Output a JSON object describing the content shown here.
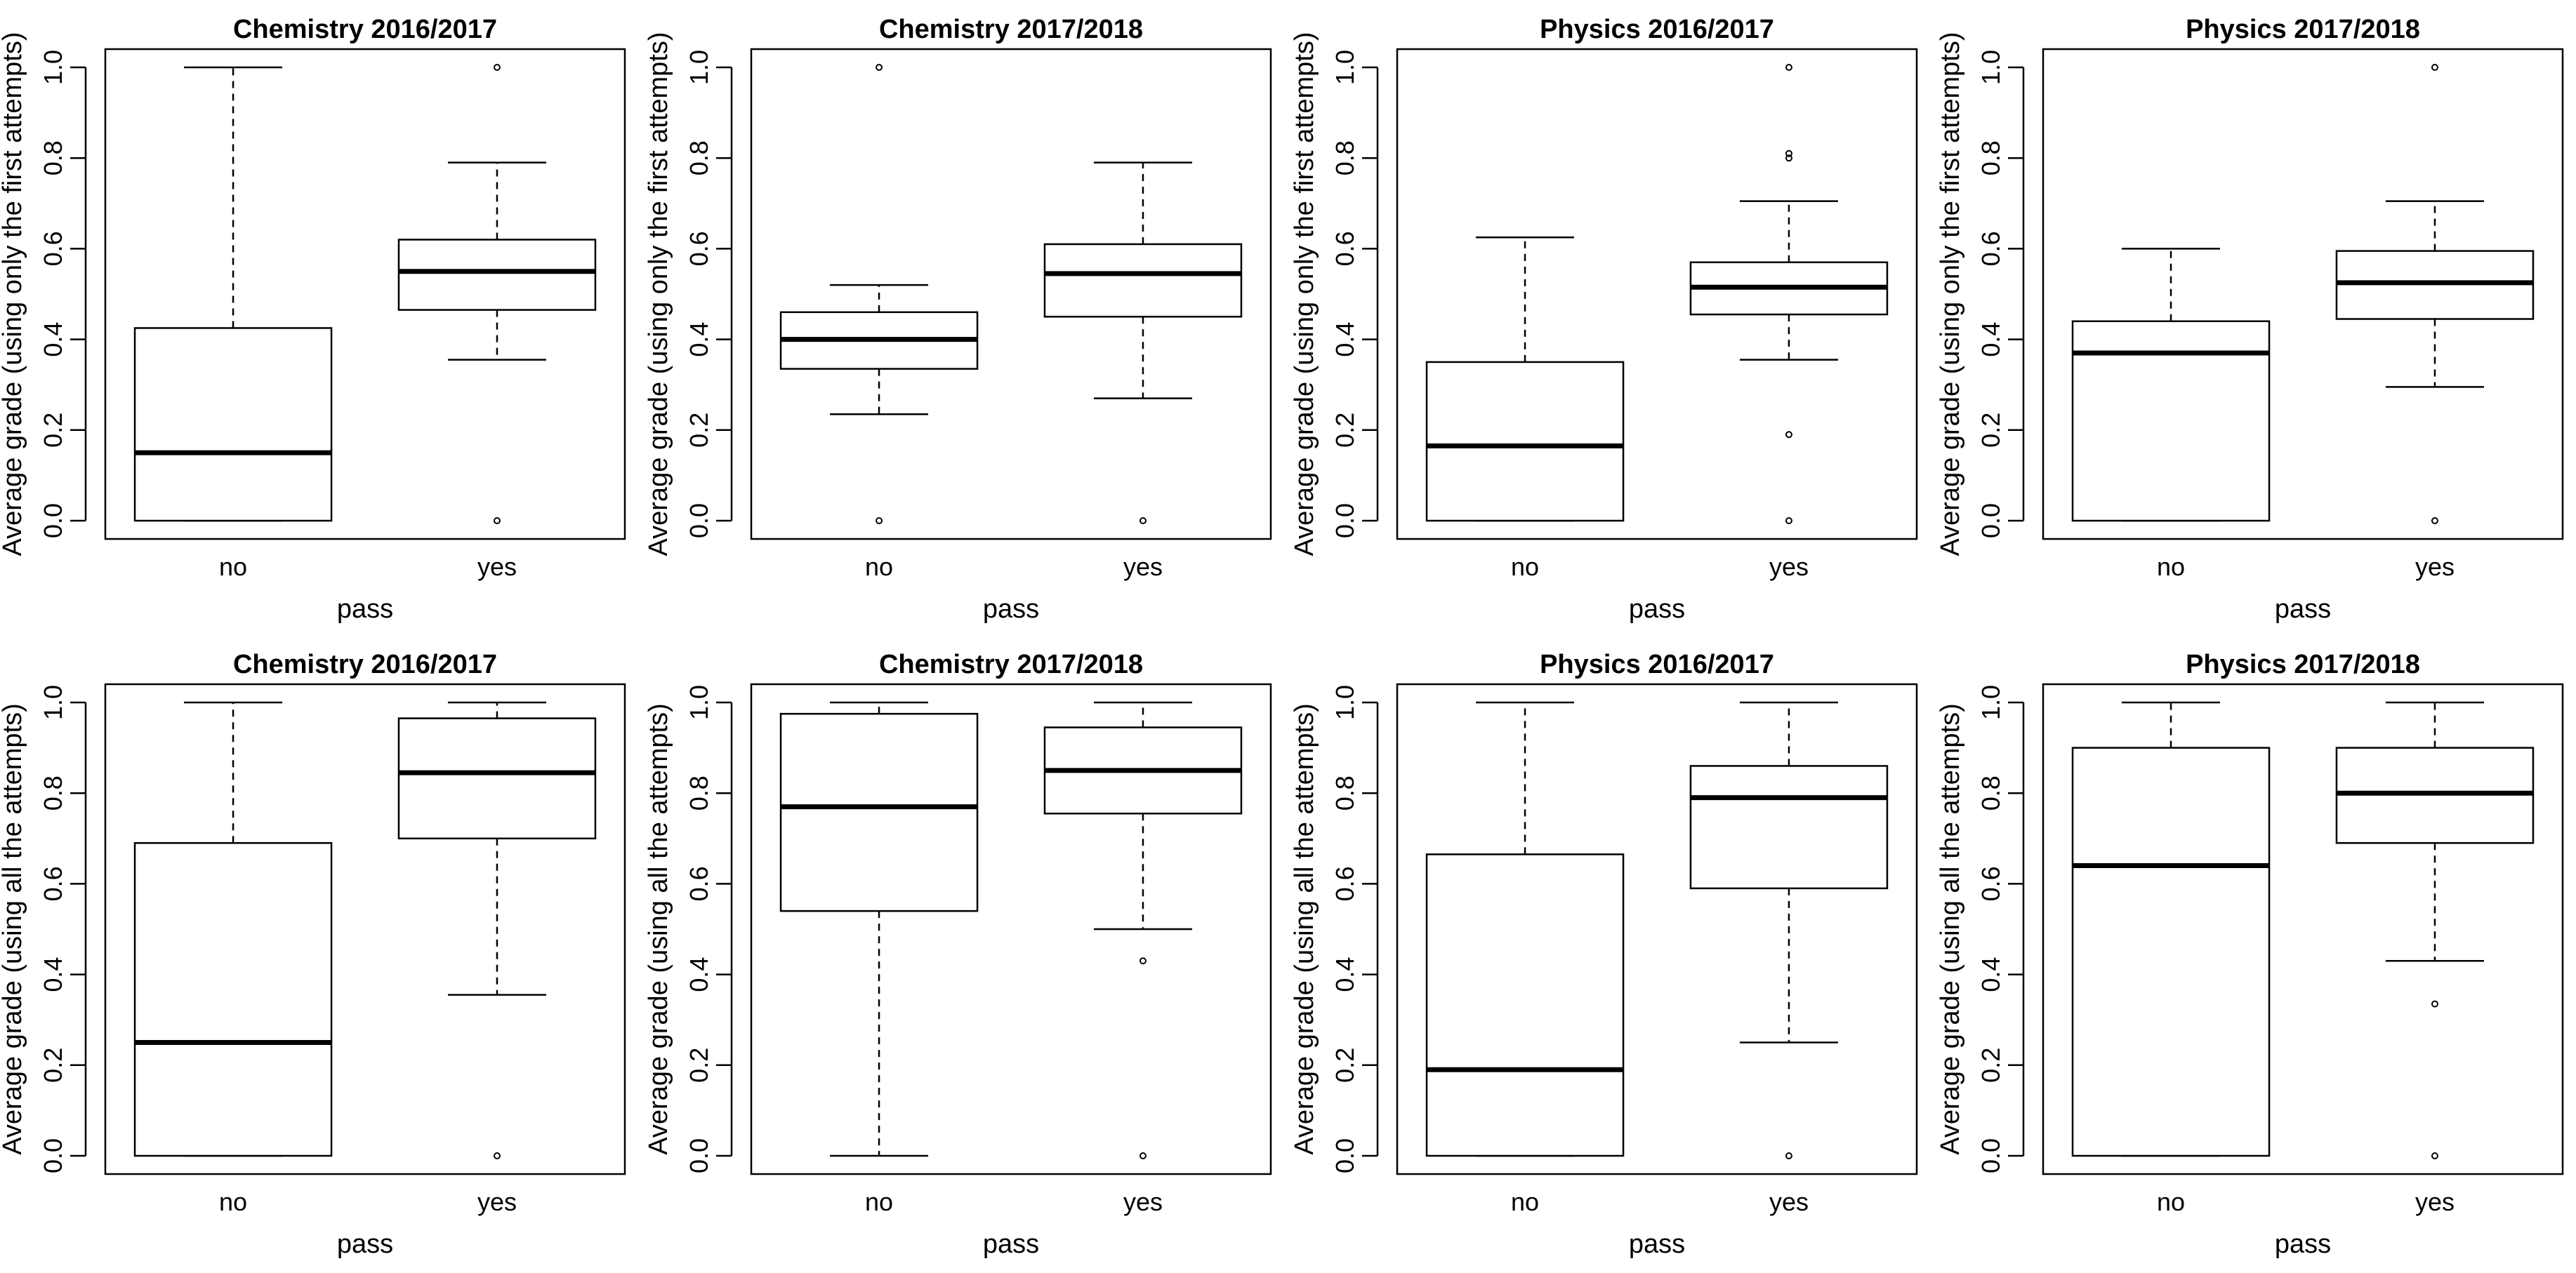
{
  "figure": {
    "rows": [
      {
        "ylabel": "Average grade (using only the first attempts)"
      },
      {
        "ylabel": "Average grade (using all the attempts)"
      }
    ]
  },
  "chart_data": [
    {
      "type": "boxplot",
      "title": "Chemistry 2016/2017",
      "xlabel": "pass",
      "ylabel": "Average grade (using only the first attempts)",
      "ylim": [
        0,
        1
      ],
      "yticks": [
        "0.0",
        "0.2",
        "0.4",
        "0.6",
        "0.8",
        "1.0"
      ],
      "categories": [
        "no",
        "yes"
      ],
      "boxes": [
        {
          "category": "no",
          "whisker_low": 0.0,
          "q1": 0.0,
          "median": 0.15,
          "q3": 0.425,
          "whisker_high": 1.0,
          "outliers": []
        },
        {
          "category": "yes",
          "whisker_low": 0.355,
          "q1": 0.465,
          "median": 0.55,
          "q3": 0.62,
          "whisker_high": 0.79,
          "outliers": [
            0.0,
            1.0
          ]
        }
      ]
    },
    {
      "type": "boxplot",
      "title": "Chemistry 2017/2018",
      "xlabel": "pass",
      "ylabel": "Average grade (using only the first attempts)",
      "ylim": [
        0,
        1
      ],
      "yticks": [
        "0.0",
        "0.2",
        "0.4",
        "0.6",
        "0.8",
        "1.0"
      ],
      "categories": [
        "no",
        "yes"
      ],
      "boxes": [
        {
          "category": "no",
          "whisker_low": 0.235,
          "q1": 0.335,
          "median": 0.4,
          "q3": 0.46,
          "whisker_high": 0.52,
          "outliers": [
            0.0,
            1.0
          ]
        },
        {
          "category": "yes",
          "whisker_low": 0.27,
          "q1": 0.45,
          "median": 0.545,
          "q3": 0.61,
          "whisker_high": 0.79,
          "outliers": [
            0.0
          ]
        }
      ]
    },
    {
      "type": "boxplot",
      "title": "Physics 2016/2017",
      "xlabel": "pass",
      "ylabel": "Average grade (using only the first attempts)",
      "ylim": [
        0,
        1
      ],
      "yticks": [
        "0.0",
        "0.2",
        "0.4",
        "0.6",
        "0.8",
        "1.0"
      ],
      "categories": [
        "no",
        "yes"
      ],
      "boxes": [
        {
          "category": "no",
          "whisker_low": 0.0,
          "q1": 0.0,
          "median": 0.165,
          "q3": 0.35,
          "whisker_high": 0.625,
          "outliers": []
        },
        {
          "category": "yes",
          "whisker_low": 0.355,
          "q1": 0.455,
          "median": 0.515,
          "q3": 0.57,
          "whisker_high": 0.705,
          "outliers": [
            0.0,
            0.19,
            0.8,
            0.81,
            1.0
          ]
        }
      ]
    },
    {
      "type": "boxplot",
      "title": "Physics 2017/2018",
      "xlabel": "pass",
      "ylabel": "Average grade (using only the first attempts)",
      "ylim": [
        0,
        1
      ],
      "yticks": [
        "0.0",
        "0.2",
        "0.4",
        "0.6",
        "0.8",
        "1.0"
      ],
      "categories": [
        "no",
        "yes"
      ],
      "boxes": [
        {
          "category": "no",
          "whisker_low": 0.0,
          "q1": 0.0,
          "median": 0.37,
          "q3": 0.44,
          "whisker_high": 0.6,
          "outliers": []
        },
        {
          "category": "yes",
          "whisker_low": 0.295,
          "q1": 0.445,
          "median": 0.525,
          "q3": 0.595,
          "whisker_high": 0.705,
          "outliers": [
            0.0,
            1.0
          ]
        }
      ]
    },
    {
      "type": "boxplot",
      "title": "Chemistry 2016/2017",
      "xlabel": "pass",
      "ylabel": "Average grade (using all the attempts)",
      "ylim": [
        0,
        1
      ],
      "yticks": [
        "0.0",
        "0.2",
        "0.4",
        "0.6",
        "0.8",
        "1.0"
      ],
      "categories": [
        "no",
        "yes"
      ],
      "boxes": [
        {
          "category": "no",
          "whisker_low": 0.0,
          "q1": 0.0,
          "median": 0.25,
          "q3": 0.69,
          "whisker_high": 1.0,
          "outliers": []
        },
        {
          "category": "yes",
          "whisker_low": 0.355,
          "q1": 0.7,
          "median": 0.845,
          "q3": 0.965,
          "whisker_high": 1.0,
          "outliers": [
            0.0
          ]
        }
      ]
    },
    {
      "type": "boxplot",
      "title": "Chemistry 2017/2018",
      "xlabel": "pass",
      "ylabel": "Average grade (using all the attempts)",
      "ylim": [
        0,
        1
      ],
      "yticks": [
        "0.0",
        "0.2",
        "0.4",
        "0.6",
        "0.8",
        "1.0"
      ],
      "categories": [
        "no",
        "yes"
      ],
      "boxes": [
        {
          "category": "no",
          "whisker_low": 0.0,
          "q1": 0.54,
          "median": 0.77,
          "q3": 0.975,
          "whisker_high": 1.0,
          "outliers": []
        },
        {
          "category": "yes",
          "whisker_low": 0.5,
          "q1": 0.755,
          "median": 0.85,
          "q3": 0.945,
          "whisker_high": 1.0,
          "outliers": [
            0.0,
            0.43
          ]
        }
      ]
    },
    {
      "type": "boxplot",
      "title": "Physics 2016/2017",
      "xlabel": "pass",
      "ylabel": "Average grade (using all the attempts)",
      "ylim": [
        0,
        1
      ],
      "yticks": [
        "0.0",
        "0.2",
        "0.4",
        "0.6",
        "0.8",
        "1.0"
      ],
      "categories": [
        "no",
        "yes"
      ],
      "boxes": [
        {
          "category": "no",
          "whisker_low": 0.0,
          "q1": 0.0,
          "median": 0.19,
          "q3": 0.665,
          "whisker_high": 1.0,
          "outliers": []
        },
        {
          "category": "yes",
          "whisker_low": 0.25,
          "q1": 0.59,
          "median": 0.79,
          "q3": 0.86,
          "whisker_high": 1.0,
          "outliers": [
            0.0
          ]
        }
      ]
    },
    {
      "type": "boxplot",
      "title": "Physics 2017/2018",
      "xlabel": "pass",
      "ylabel": "Average grade (using all the attempts)",
      "ylim": [
        0,
        1
      ],
      "yticks": [
        "0.0",
        "0.2",
        "0.4",
        "0.6",
        "0.8",
        "1.0"
      ],
      "categories": [
        "no",
        "yes"
      ],
      "boxes": [
        {
          "category": "no",
          "whisker_low": 0.0,
          "q1": 0.0,
          "median": 0.64,
          "q3": 0.9,
          "whisker_high": 1.0,
          "outliers": []
        },
        {
          "category": "yes",
          "whisker_low": 0.43,
          "q1": 0.69,
          "median": 0.8,
          "q3": 0.9,
          "whisker_high": 1.0,
          "outliers": [
            0.0,
            0.335
          ]
        }
      ]
    }
  ]
}
